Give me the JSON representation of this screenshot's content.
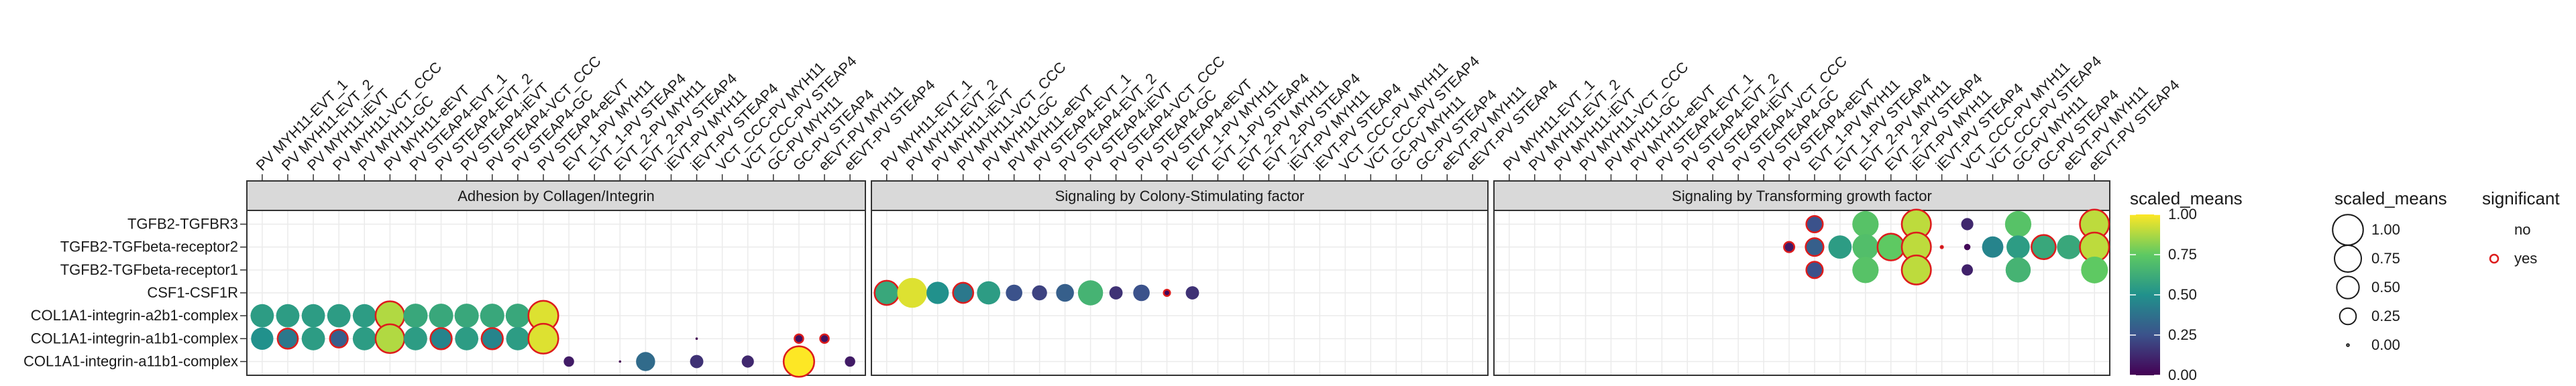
{
  "chart_data": {
    "type": "scatter",
    "colors": {
      "significant_stroke": "#dd1c1c",
      "panel_border": "#333333",
      "strip_fill": "#d9d9d9",
      "grid": "#ebebeb",
      "viridis": [
        "#440154",
        "#3b528b",
        "#21918c",
        "#5ec962",
        "#fde725"
      ]
    },
    "rows": [
      "TGFB2-TGFBR3",
      "TGFB2-TGFbeta-receptor2",
      "TGFB2-TGFbeta-receptor1",
      "CSF1-CSF1R",
      "COL1A1-integrin-a2b1-complex",
      "COL1A1-integrin-a1b1-complex",
      "COL1A1-integrin-a11b1-complex"
    ],
    "columns": [
      "PV MYH11-EVT_1",
      "PV MYH11-EVT_2",
      "PV MYH11-iEVT",
      "PV MYH11-VCT_CCC",
      "PV MYH11-GC",
      "PV MYH11-eEVT",
      "PV STEAP4-EVT_1",
      "PV STEAP4-EVT_2",
      "PV STEAP4-iEVT",
      "PV STEAP4-VCT_CCC",
      "PV STEAP4-GC",
      "PV STEAP4-eEVT",
      "EVT_1-PV MYH11",
      "EVT_1-PV STEAP4",
      "EVT_2-PV MYH11",
      "EVT_2-PV STEAP4",
      "iEVT-PV MYH11",
      "iEVT-PV STEAP4",
      "VCT_CCC-PV MYH11",
      "VCT_CCC-PV STEAP4",
      "GC-PV MYH11",
      "GC-PV STEAP4",
      "eEVT-PV MYH11",
      "eEVT-PV STEAP4"
    ],
    "panels": [
      {
        "title": "Adhesion by Collagen/Integrin",
        "points": [
          {
            "row": "COL1A1-integrin-a2b1-complex",
            "col": 0,
            "value": 0.55,
            "significant": false
          },
          {
            "row": "COL1A1-integrin-a2b1-complex",
            "col": 1,
            "value": 0.55,
            "significant": false
          },
          {
            "row": "COL1A1-integrin-a2b1-complex",
            "col": 2,
            "value": 0.55,
            "significant": false
          },
          {
            "row": "COL1A1-integrin-a2b1-complex",
            "col": 3,
            "value": 0.55,
            "significant": false
          },
          {
            "row": "COL1A1-integrin-a2b1-complex",
            "col": 4,
            "value": 0.55,
            "significant": false
          },
          {
            "row": "COL1A1-integrin-a2b1-complex",
            "col": 5,
            "value": 0.88,
            "significant": true
          },
          {
            "row": "COL1A1-integrin-a2b1-complex",
            "col": 6,
            "value": 0.6,
            "significant": false
          },
          {
            "row": "COL1A1-integrin-a2b1-complex",
            "col": 7,
            "value": 0.6,
            "significant": false
          },
          {
            "row": "COL1A1-integrin-a2b1-complex",
            "col": 8,
            "value": 0.6,
            "significant": false
          },
          {
            "row": "COL1A1-integrin-a2b1-complex",
            "col": 9,
            "value": 0.6,
            "significant": false
          },
          {
            "row": "COL1A1-integrin-a2b1-complex",
            "col": 10,
            "value": 0.6,
            "significant": false
          },
          {
            "row": "COL1A1-integrin-a2b1-complex",
            "col": 11,
            "value": 0.95,
            "significant": true
          },
          {
            "row": "COL1A1-integrin-a1b1-complex",
            "col": 0,
            "value": 0.5,
            "significant": false
          },
          {
            "row": "COL1A1-integrin-a1b1-complex",
            "col": 1,
            "value": 0.4,
            "significant": true
          },
          {
            "row": "COL1A1-integrin-a1b1-complex",
            "col": 2,
            "value": 0.55,
            "significant": false
          },
          {
            "row": "COL1A1-integrin-a1b1-complex",
            "col": 3,
            "value": 0.3,
            "significant": true
          },
          {
            "row": "COL1A1-integrin-a1b1-complex",
            "col": 4,
            "value": 0.55,
            "significant": false
          },
          {
            "row": "COL1A1-integrin-a1b1-complex",
            "col": 5,
            "value": 0.88,
            "significant": true
          },
          {
            "row": "COL1A1-integrin-a1b1-complex",
            "col": 6,
            "value": 0.55,
            "significant": false
          },
          {
            "row": "COL1A1-integrin-a1b1-complex",
            "col": 7,
            "value": 0.45,
            "significant": true
          },
          {
            "row": "COL1A1-integrin-a1b1-complex",
            "col": 8,
            "value": 0.55,
            "significant": false
          },
          {
            "row": "COL1A1-integrin-a1b1-complex",
            "col": 9,
            "value": 0.45,
            "significant": true
          },
          {
            "row": "COL1A1-integrin-a1b1-complex",
            "col": 10,
            "value": 0.55,
            "significant": false
          },
          {
            "row": "COL1A1-integrin-a1b1-complex",
            "col": 11,
            "value": 0.95,
            "significant": true
          },
          {
            "row": "COL1A1-integrin-a1b1-complex",
            "col": 17,
            "value": 0.0,
            "significant": false
          },
          {
            "row": "COL1A1-integrin-a1b1-complex",
            "col": 21,
            "value": 0.05,
            "significant": true
          },
          {
            "row": "COL1A1-integrin-a1b1-complex",
            "col": 22,
            "value": 0.05,
            "significant": true
          },
          {
            "row": "COL1A1-integrin-a11b1-complex",
            "col": 12,
            "value": 0.08,
            "significant": false
          },
          {
            "row": "COL1A1-integrin-a11b1-complex",
            "col": 14,
            "value": 0.0,
            "significant": false
          },
          {
            "row": "COL1A1-integrin-a11b1-complex",
            "col": 15,
            "value": 0.35,
            "significant": false
          },
          {
            "row": "COL1A1-integrin-a11b1-complex",
            "col": 17,
            "value": 0.15,
            "significant": false
          },
          {
            "row": "COL1A1-integrin-a11b1-complex",
            "col": 19,
            "value": 0.12,
            "significant": false
          },
          {
            "row": "COL1A1-integrin-a11b1-complex",
            "col": 21,
            "value": 1.0,
            "significant": true
          },
          {
            "row": "COL1A1-integrin-a11b1-complex",
            "col": 23,
            "value": 0.08,
            "significant": false
          }
        ]
      },
      {
        "title": "Signaling by Colony-Stimulating factor",
        "points": [
          {
            "row": "CSF1-CSF1R",
            "col": 0,
            "value": 0.6,
            "significant": true
          },
          {
            "row": "CSF1-CSF1R",
            "col": 1,
            "value": 0.95,
            "significant": false
          },
          {
            "row": "CSF1-CSF1R",
            "col": 2,
            "value": 0.5,
            "significant": false
          },
          {
            "row": "CSF1-CSF1R",
            "col": 3,
            "value": 0.4,
            "significant": true
          },
          {
            "row": "CSF1-CSF1R",
            "col": 4,
            "value": 0.55,
            "significant": false
          },
          {
            "row": "CSF1-CSF1R",
            "col": 5,
            "value": 0.25,
            "significant": false
          },
          {
            "row": "CSF1-CSF1R",
            "col": 6,
            "value": 0.2,
            "significant": false
          },
          {
            "row": "CSF1-CSF1R",
            "col": 7,
            "value": 0.3,
            "significant": false
          },
          {
            "row": "CSF1-CSF1R",
            "col": 8,
            "value": 0.65,
            "significant": false
          },
          {
            "row": "CSF1-CSF1R",
            "col": 9,
            "value": 0.15,
            "significant": false
          },
          {
            "row": "CSF1-CSF1R",
            "col": 10,
            "value": 0.25,
            "significant": false
          },
          {
            "row": "CSF1-CSF1R",
            "col": 11,
            "value": 0.02,
            "significant": true
          },
          {
            "row": "CSF1-CSF1R",
            "col": 12,
            "value": 0.15,
            "significant": false
          }
        ]
      },
      {
        "title": "Signaling by Transforming growth factor",
        "points": [
          {
            "row": "TGFB2-TGFBR3",
            "col": 12,
            "value": 0.25,
            "significant": true
          },
          {
            "row": "TGFB2-TGFBR3",
            "col": 14,
            "value": 0.72,
            "significant": false
          },
          {
            "row": "TGFB2-TGFBR3",
            "col": 16,
            "value": 0.9,
            "significant": true
          },
          {
            "row": "TGFB2-TGFBR3",
            "col": 18,
            "value": 0.12,
            "significant": false
          },
          {
            "row": "TGFB2-TGFBR3",
            "col": 20,
            "value": 0.72,
            "significant": false
          },
          {
            "row": "TGFB2-TGFBR3",
            "col": 23,
            "value": 0.9,
            "significant": true
          },
          {
            "row": "TGFB2-TGFbeta-receptor2",
            "col": 11,
            "value": 0.08,
            "significant": true
          },
          {
            "row": "TGFB2-TGFbeta-receptor2",
            "col": 12,
            "value": 0.3,
            "significant": true
          },
          {
            "row": "TGFB2-TGFbeta-receptor2",
            "col": 13,
            "value": 0.55,
            "significant": false
          },
          {
            "row": "TGFB2-TGFbeta-receptor2",
            "col": 14,
            "value": 0.7,
            "significant": false
          },
          {
            "row": "TGFB2-TGFbeta-receptor2",
            "col": 15,
            "value": 0.75,
            "significant": true
          },
          {
            "row": "TGFB2-TGFbeta-receptor2",
            "col": 16,
            "value": 0.9,
            "significant": true
          },
          {
            "row": "TGFB2-TGFbeta-receptor2",
            "col": 17,
            "value": 0.0,
            "significant": true
          },
          {
            "row": "TGFB2-TGFbeta-receptor2",
            "col": 18,
            "value": 0.02,
            "significant": false
          },
          {
            "row": "TGFB2-TGFbeta-receptor2",
            "col": 19,
            "value": 0.45,
            "significant": false
          },
          {
            "row": "TGFB2-TGFbeta-receptor2",
            "col": 20,
            "value": 0.55,
            "significant": false
          },
          {
            "row": "TGFB2-TGFbeta-receptor2",
            "col": 21,
            "value": 0.6,
            "significant": true
          },
          {
            "row": "TGFB2-TGFbeta-receptor2",
            "col": 22,
            "value": 0.6,
            "significant": false
          },
          {
            "row": "TGFB2-TGFbeta-receptor2",
            "col": 23,
            "value": 0.9,
            "significant": true
          },
          {
            "row": "TGFB2-TGFbeta-receptor1",
            "col": 12,
            "value": 0.25,
            "significant": true
          },
          {
            "row": "TGFB2-TGFbeta-receptor1",
            "col": 14,
            "value": 0.72,
            "significant": false
          },
          {
            "row": "TGFB2-TGFbeta-receptor1",
            "col": 16,
            "value": 0.9,
            "significant": true
          },
          {
            "row": "TGFB2-TGFbeta-receptor1",
            "col": 18,
            "value": 0.1,
            "significant": false
          },
          {
            "row": "TGFB2-TGFbeta-receptor1",
            "col": 20,
            "value": 0.65,
            "significant": false
          },
          {
            "row": "TGFB2-TGFbeta-receptor1",
            "col": 23,
            "value": 0.75,
            "significant": false
          }
        ]
      }
    ],
    "legend_color": {
      "title": "scaled_means",
      "ticks": [
        1.0,
        0.75,
        0.5,
        0.25,
        0.0
      ],
      "tick_labels": [
        "1.00",
        "0.75",
        "0.50",
        "0.25",
        "0.00"
      ]
    },
    "legend_size": {
      "title": "scaled_means",
      "values": [
        1.0,
        0.75,
        0.5,
        0.25,
        0.0
      ],
      "labels": [
        "1.00",
        "0.75",
        "0.50",
        "0.25",
        "0.00"
      ]
    },
    "legend_significant": {
      "title": "significant",
      "labels": [
        "no",
        "yes"
      ]
    }
  }
}
